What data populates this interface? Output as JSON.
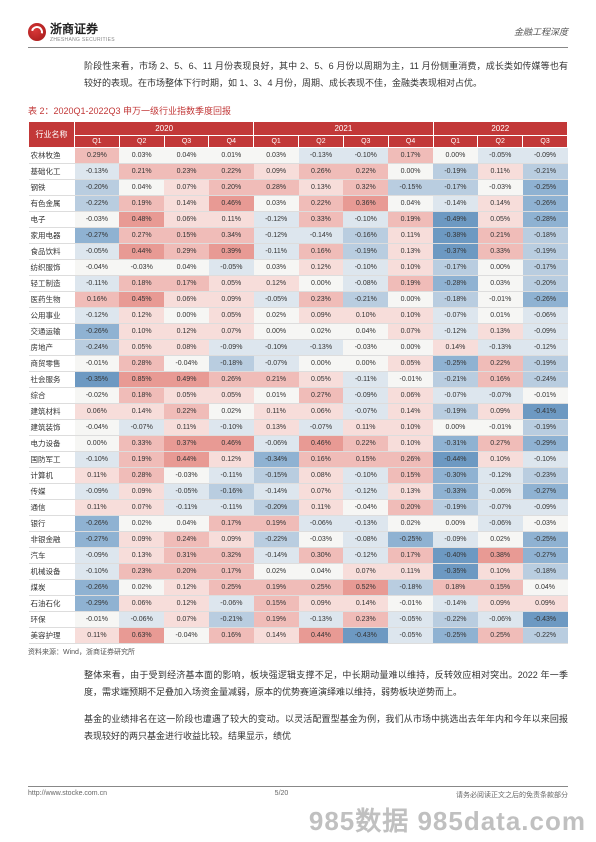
{
  "header": {
    "brand": "浙商证券",
    "brand_sub": "ZHESHANG SECURITIES",
    "doc_type": "金融工程深度"
  },
  "intro": "阶段性来看，市场 2、5、6、11 月份表现良好，其中 2、5、6 月份以周期为主，11 月份侧重消费，成长类如传媒等也有较好的表现。在市场整体下行时期，如 1、3、4 月份，周期、成长表现不佳，金融类表现相对占优。",
  "table": {
    "title": "表 2：2020Q1-2022Q3 申万一级行业指数季度回报",
    "source": "资料来源：Wind，浙商证券研究所",
    "header_row_label": "行业名称",
    "years": [
      "2020",
      "2021",
      "2022"
    ],
    "quarters11": [
      "Q1",
      "Q2",
      "Q3",
      "Q4",
      "Q1",
      "Q2",
      "Q3",
      "Q4",
      "Q1",
      "Q2",
      "Q3"
    ],
    "heat_palette": {
      "pos3": "#e89a94",
      "pos2": "#f0bcb8",
      "pos1": "#f7ddda",
      "neu": "#f6f6f4",
      "neg1": "#dde6ee",
      "neg2": "#b9cde0",
      "neg3": "#8fb2d2",
      "neg4": "#6d99c2"
    },
    "rows": [
      {
        "name": "农林牧渔",
        "v": [
          0.29,
          0.03,
          0.04,
          0.01,
          0.03,
          -0.13,
          -0.1,
          0.17,
          0.0,
          -0.05,
          -0.09
        ]
      },
      {
        "name": "基础化工",
        "v": [
          -0.13,
          0.21,
          0.23,
          0.22,
          0.09,
          0.26,
          0.22,
          0.0,
          -0.19,
          0.11,
          -0.21
        ]
      },
      {
        "name": "钢铁",
        "v": [
          -0.2,
          0.04,
          0.07,
          0.2,
          0.28,
          0.13,
          0.32,
          -0.15,
          -0.17,
          -0.03,
          -0.25
        ]
      },
      {
        "name": "有色金属",
        "v": [
          -0.22,
          0.19,
          0.14,
          0.46,
          0.03,
          0.22,
          0.36,
          0.04,
          -0.14,
          0.14,
          -0.26
        ]
      },
      {
        "name": "电子",
        "v": [
          -0.03,
          0.48,
          0.06,
          0.11,
          -0.12,
          0.33,
          -0.1,
          0.19,
          -0.49,
          0.05,
          -0.28
        ]
      },
      {
        "name": "家用电器",
        "v": [
          -0.27,
          0.27,
          0.15,
          0.34,
          -0.12,
          -0.14,
          -0.16,
          0.11,
          -0.38,
          0.21,
          -0.18
        ]
      },
      {
        "name": "食品饮料",
        "v": [
          -0.05,
          0.44,
          0.29,
          0.39,
          -0.11,
          0.16,
          -0.19,
          0.13,
          -0.37,
          0.33,
          -0.19
        ]
      },
      {
        "name": "纺织服饰",
        "v": [
          -0.04,
          -0.03,
          0.04,
          -0.05,
          0.03,
          0.12,
          -0.1,
          0.1,
          -0.17,
          0.0,
          -0.17
        ]
      },
      {
        "name": "轻工制造",
        "v": [
          -0.11,
          0.18,
          0.17,
          0.05,
          0.12,
          0.0,
          -0.08,
          0.19,
          -0.28,
          0.03,
          -0.2
        ]
      },
      {
        "name": "医药生物",
        "v": [
          0.16,
          0.45,
          0.06,
          0.09,
          -0.05,
          0.23,
          -0.21,
          0.0,
          -0.18,
          -0.01,
          -0.26
        ]
      },
      {
        "name": "公用事业",
        "v": [
          -0.12,
          0.12,
          0.0,
          0.05,
          0.02,
          0.09,
          0.1,
          0.1,
          -0.07,
          0.01,
          -0.06
        ]
      },
      {
        "name": "交通运输",
        "v": [
          -0.26,
          0.1,
          0.12,
          0.07,
          0.0,
          0.02,
          0.04,
          0.07,
          -0.12,
          0.13,
          -0.09
        ]
      },
      {
        "name": "房地产",
        "v": [
          -0.24,
          0.05,
          0.08,
          -0.09,
          -0.1,
          -0.13,
          -0.03,
          0.0,
          0.14,
          -0.13,
          -0.12
        ]
      },
      {
        "name": "商贸零售",
        "v": [
          -0.01,
          0.28,
          -0.04,
          -0.18,
          -0.07,
          0.0,
          0.0,
          0.05,
          -0.25,
          0.22,
          -0.19
        ]
      },
      {
        "name": "社会服务",
        "v": [
          -0.35,
          0.85,
          0.49,
          0.26,
          0.21,
          0.05,
          -0.11,
          -0.01,
          -0.21,
          0.16,
          -0.24
        ]
      },
      {
        "name": "综合",
        "v": [
          -0.02,
          0.18,
          0.05,
          0.05,
          0.01,
          0.27,
          -0.09,
          0.06,
          -0.07,
          -0.07,
          -0.01
        ]
      },
      {
        "name": "建筑材料",
        "v": [
          0.06,
          0.14,
          0.22,
          0.02,
          0.11,
          0.06,
          -0.07,
          0.14,
          -0.19,
          0.09,
          -0.41
        ]
      },
      {
        "name": "建筑装饰",
        "v": [
          -0.04,
          -0.07,
          0.11,
          -0.1,
          0.13,
          -0.07,
          0.11,
          0.1,
          0.0,
          -0.01,
          -0.19
        ]
      },
      {
        "name": "电力设备",
        "v": [
          0.0,
          0.33,
          0.37,
          0.46,
          -0.06,
          0.46,
          0.22,
          0.1,
          -0.31,
          0.27,
          -0.29
        ]
      },
      {
        "name": "国防军工",
        "v": [
          -0.1,
          0.19,
          0.44,
          0.12,
          -0.34,
          0.16,
          0.15,
          0.26,
          -0.44,
          0.1,
          -0.1
        ]
      },
      {
        "name": "计算机",
        "v": [
          0.11,
          0.28,
          -0.03,
          -0.11,
          -0.15,
          0.08,
          -0.1,
          0.15,
          -0.3,
          -0.12,
          -0.23
        ]
      },
      {
        "name": "传媒",
        "v": [
          -0.09,
          0.09,
          -0.05,
          -0.16,
          -0.14,
          0.07,
          -0.12,
          0.13,
          -0.33,
          -0.06,
          -0.27
        ]
      },
      {
        "name": "通信",
        "v": [
          0.11,
          0.07,
          -0.11,
          -0.11,
          -0.2,
          0.11,
          -0.04,
          0.2,
          -0.19,
          -0.07,
          -0.09
        ]
      },
      {
        "name": "银行",
        "v": [
          -0.26,
          0.02,
          0.04,
          0.17,
          0.19,
          -0.06,
          -0.13,
          0.02,
          0.0,
          -0.06,
          -0.03
        ]
      },
      {
        "name": "非银金融",
        "v": [
          -0.27,
          0.09,
          0.24,
          0.09,
          -0.22,
          -0.03,
          -0.08,
          -0.25,
          -0.09,
          0.02,
          -0.25
        ]
      },
      {
        "name": "汽车",
        "v": [
          -0.09,
          0.13,
          0.31,
          0.32,
          -0.14,
          0.3,
          -0.12,
          0.17,
          -0.4,
          0.38,
          -0.27
        ]
      },
      {
        "name": "机械设备",
        "v": [
          -0.1,
          0.23,
          0.2,
          0.17,
          0.02,
          0.04,
          0.07,
          0.11,
          -0.35,
          0.1,
          -0.18
        ]
      },
      {
        "name": "煤炭",
        "v": [
          -0.26,
          0.02,
          0.12,
          0.25,
          0.19,
          0.25,
          0.52,
          -0.18,
          0.18,
          0.15,
          0.04
        ]
      },
      {
        "name": "石油石化",
        "v": [
          -0.29,
          0.06,
          0.12,
          -0.06,
          0.15,
          0.09,
          0.14,
          -0.01,
          -0.14,
          0.09,
          0.09
        ]
      },
      {
        "name": "环保",
        "v": [
          -0.01,
          -0.06,
          0.07,
          -0.21,
          0.19,
          -0.13,
          0.23,
          -0.05,
          -0.22,
          -0.06,
          -0.43
        ]
      },
      {
        "name": "美容护理",
        "v": [
          0.11,
          0.63,
          -0.04,
          0.16,
          0.14,
          0.44,
          -0.43,
          -0.05,
          -0.25,
          0.25,
          -0.22
        ]
      }
    ]
  },
  "outro1": "整体来看，由于受到经济基本面的影响，板块强逻辑支撑不足，中长期动量难以维持，反转效应相对突出。2022 年一季度，需求端预期不足叠加入场资金量减弱，原本的优势赛道演绎难以维持，弱势板块逆势而上。",
  "outro2": "基金的业绩排名在这一阶段也遭遇了较大的变动。以灵活配置型基金为例，我们从市场中挑选出去年年内和今年以来回报表现较好的两只基金进行收益比较。结果显示，绩优",
  "footer": {
    "url": "http://www.stocke.com.cn",
    "page": "5/20",
    "disclaimer": "请务必阅读正文之后的免责条款部分"
  },
  "watermark": "985数据  985data.com"
}
